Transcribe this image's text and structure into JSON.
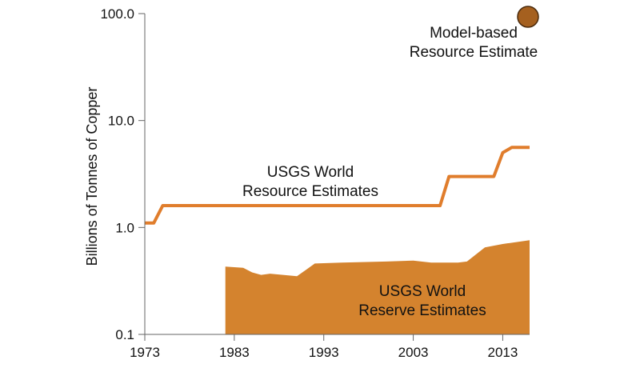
{
  "chart_data": {
    "type": "area",
    "title": "",
    "xlabel": "",
    "ylabel": "Billions of Tonnes of Copper",
    "yscale": "log",
    "xlim": [
      1973,
      2016
    ],
    "ylim": [
      0.1,
      100
    ],
    "x_ticks": [
      1973,
      1983,
      1993,
      2003,
      2013
    ],
    "x_tick_labels": [
      "1973",
      "1983",
      "1993",
      "2003",
      "2013"
    ],
    "y_ticks": [
      0.1,
      1,
      10,
      100
    ],
    "y_tick_labels": [
      "0.1",
      "1.0",
      "10.0",
      "100.0"
    ],
    "grid": false,
    "series": [
      {
        "name": "USGS World Resource Estimates",
        "kind": "line",
        "color": "#e07d2c",
        "label_lines": [
          "USGS World",
          "Resource Estimates"
        ],
        "x": [
          1973,
          1974,
          1975,
          1975.5,
          2006,
          2007,
          2012,
          2013,
          2014,
          2016
        ],
        "y": [
          1.1,
          1.1,
          1.6,
          1.6,
          1.6,
          3.0,
          3.0,
          5.0,
          5.6,
          5.6
        ]
      },
      {
        "name": "USGS World Reserve Estimates",
        "kind": "area",
        "color": "#d4832e",
        "label_lines": [
          "USGS World",
          "Reserve Estimates"
        ],
        "x": [
          1982,
          1984,
          1985,
          1986,
          1987,
          1990,
          1992,
          1995,
          2000,
          2003,
          2005,
          2008,
          2009,
          2011,
          2013,
          2016
        ],
        "y": [
          0.43,
          0.42,
          0.38,
          0.36,
          0.37,
          0.35,
          0.46,
          0.47,
          0.48,
          0.49,
          0.47,
          0.47,
          0.48,
          0.65,
          0.7,
          0.76
        ]
      }
    ],
    "point": {
      "name": "Model-based Resource Estimate",
      "x": 2016,
      "y": 100,
      "color": "#a5601f",
      "label_lines": [
        "Model-based",
        "Resource Estimate"
      ]
    }
  }
}
